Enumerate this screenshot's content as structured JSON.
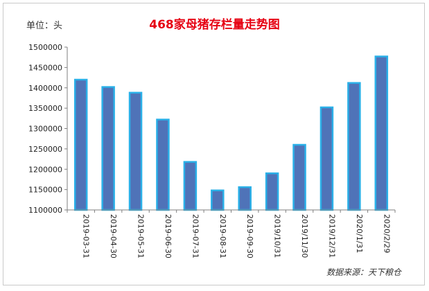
{
  "unit_label": "单位：头",
  "source_label": "数据来源：天下粮仓",
  "chart_data": {
    "type": "bar",
    "title": "468家母猪存栏量走势图",
    "categories": [
      "2019-03-31",
      "2019-04-30",
      "2019-05-31",
      "2019-06-30",
      "2019-07-31",
      "2019-08-31",
      "2019-09-30",
      "2019/10/31",
      "2019/11/30",
      "2019/12/31",
      "2020/1/31",
      "2020/2/29"
    ],
    "values": [
      1420000,
      1402000,
      1388000,
      1322000,
      1218000,
      1148000,
      1156000,
      1190000,
      1260000,
      1352000,
      1412000,
      1477000
    ],
    "ylim": [
      1100000,
      1500000
    ],
    "yticks": [
      1100000,
      1150000,
      1200000,
      1250000,
      1300000,
      1350000,
      1400000,
      1450000,
      1500000
    ],
    "grid": false,
    "colors": {
      "bar_fill": "#4f73b8",
      "bar_edge": "#2ab0e8",
      "axis": "#7f7f7f"
    }
  }
}
